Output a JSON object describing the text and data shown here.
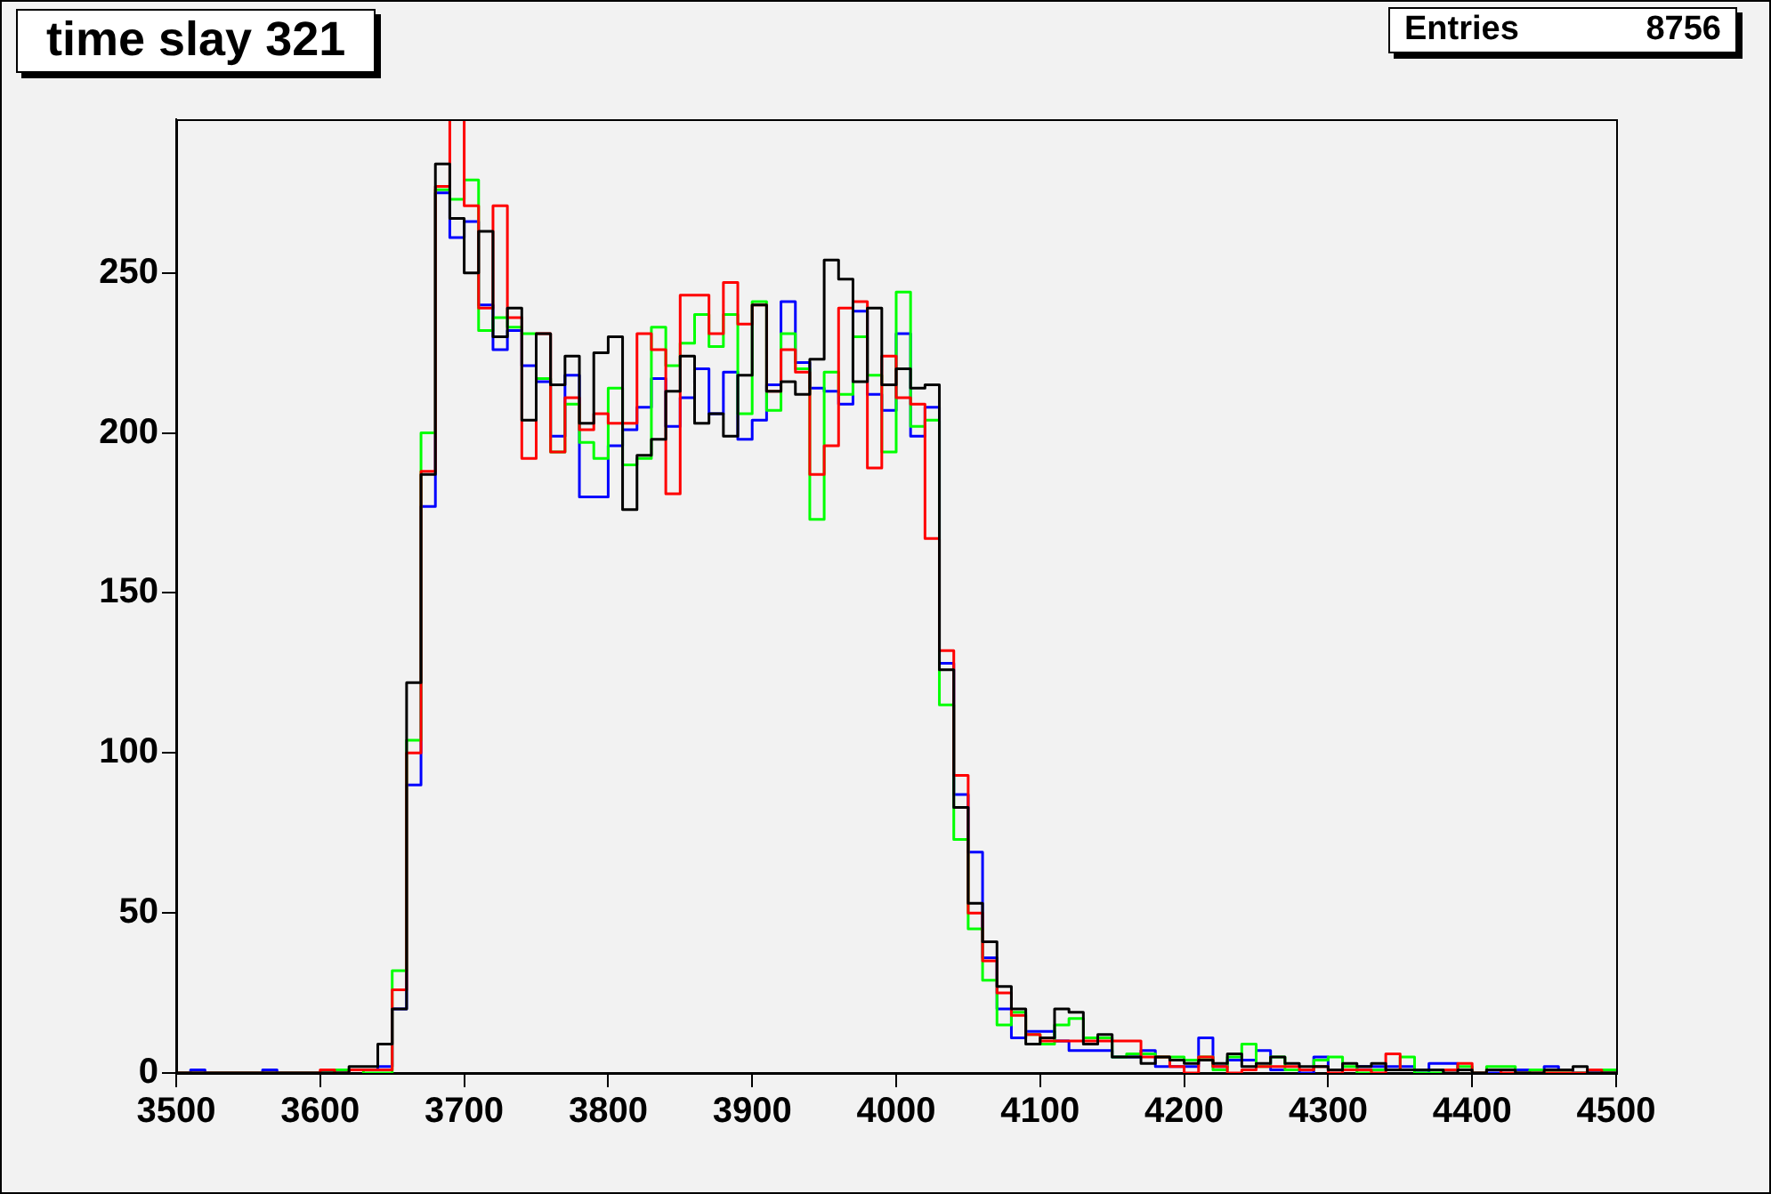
{
  "chart_data": {
    "type": "histogram",
    "title": "time slay 321",
    "annotations": [
      "Entries 8756"
    ],
    "bins": [
      3500,
      3510,
      3520,
      3530,
      3540,
      3550,
      3560,
      3570,
      3580,
      3590,
      3600,
      3610,
      3620,
      3630,
      3640,
      3650,
      3660,
      3670,
      3680,
      3690,
      3700,
      3710,
      3720,
      3730,
      3740,
      3750,
      3760,
      3770,
      3780,
      3790,
      3800,
      3810,
      3820,
      3830,
      3840,
      3850,
      3860,
      3870,
      3880,
      3890,
      3900,
      3910,
      3920,
      3930,
      3940,
      3950,
      3960,
      3970,
      3980,
      3990,
      4000,
      4010,
      4020,
      4030,
      4040,
      4050,
      4060,
      4070,
      4080,
      4090,
      4100,
      4110,
      4120,
      4130,
      4140,
      4150,
      4160,
      4170,
      4180,
      4190,
      4200,
      4210,
      4220,
      4230,
      4240,
      4250,
      4260,
      4270,
      4280,
      4290,
      4300,
      4310,
      4320,
      4330,
      4340,
      4350,
      4360,
      4370,
      4380,
      4390,
      4400,
      4410,
      4420,
      4430,
      4440,
      4450,
      4460,
      4470,
      4480,
      4490,
      4500
    ],
    "series": [
      {
        "color": "#000000",
        "values": [
          0,
          0,
          0,
          0,
          0,
          0,
          0,
          0,
          0,
          0,
          0,
          0,
          2,
          2,
          9,
          20,
          122,
          187,
          284,
          267,
          250,
          263,
          230,
          239,
          204,
          231,
          215,
          224,
          203,
          225,
          230,
          176,
          193,
          198,
          213,
          224,
          203,
          206,
          199,
          218,
          240,
          213,
          216,
          212,
          223,
          254,
          248,
          216,
          239,
          215,
          220,
          214,
          215,
          126,
          83,
          53,
          41,
          27,
          20,
          9,
          11,
          20,
          19,
          9,
          12,
          5,
          5,
          3,
          5,
          4,
          3,
          4,
          3,
          6,
          2,
          3,
          5,
          3,
          2,
          2,
          1,
          3,
          2,
          3,
          1,
          1,
          1,
          1,
          0,
          1,
          0,
          1,
          1,
          0,
          0,
          1,
          1,
          2,
          0,
          0
        ]
      },
      {
        "color": "#ff0000",
        "values": [
          0,
          0,
          0,
          0,
          0,
          0,
          0,
          0,
          0,
          0,
          1,
          0,
          1,
          1,
          1,
          26,
          100,
          188,
          277,
          298,
          271,
          239,
          271,
          236,
          192,
          231,
          194,
          211,
          201,
          206,
          203,
          203,
          231,
          226,
          181,
          243,
          243,
          231,
          247,
          234,
          240,
          213,
          226,
          219,
          187,
          196,
          239,
          241,
          189,
          224,
          211,
          209,
          167,
          132,
          93,
          50,
          35,
          25,
          18,
          12,
          10,
          10,
          10,
          10,
          10,
          10,
          10,
          5,
          5,
          2,
          0,
          5,
          2,
          0,
          1,
          2,
          2,
          2,
          1,
          2,
          0,
          1,
          1,
          0,
          6,
          1,
          1,
          1,
          1,
          3,
          0,
          1,
          0,
          0,
          0,
          0,
          0,
          0,
          1,
          0
        ]
      },
      {
        "color": "#00ff00",
        "values": [
          0,
          0,
          0,
          0,
          0,
          0,
          0,
          0,
          0,
          0,
          0,
          1,
          1,
          0,
          0,
          32,
          104,
          200,
          276,
          273,
          279,
          232,
          236,
          233,
          231,
          217,
          194,
          209,
          197,
          192,
          214,
          190,
          192,
          233,
          221,
          228,
          237,
          227,
          237,
          206,
          241,
          207,
          231,
          220,
          173,
          219,
          212,
          230,
          218,
          194,
          244,
          202,
          204,
          115,
          73,
          45,
          29,
          15,
          19,
          12,
          9,
          15,
          17,
          11,
          11,
          5,
          6,
          6,
          5,
          5,
          4,
          5,
          1,
          5,
          9,
          2,
          5,
          1,
          1,
          4,
          5,
          2,
          0,
          1,
          1,
          5,
          0,
          0,
          1,
          2,
          0,
          2,
          2,
          0,
          1,
          0,
          0,
          0,
          1,
          1
        ]
      },
      {
        "color": "#0000ff",
        "values": [
          0,
          1,
          0,
          0,
          0,
          0,
          1,
          0,
          0,
          0,
          0,
          0,
          1,
          1,
          2,
          20,
          90,
          177,
          275,
          261,
          266,
          240,
          226,
          232,
          221,
          216,
          199,
          218,
          180,
          180,
          196,
          201,
          208,
          217,
          202,
          211,
          220,
          206,
          219,
          198,
          204,
          215,
          241,
          222,
          214,
          213,
          209,
          238,
          212,
          207,
          231,
          199,
          208,
          128,
          87,
          69,
          36,
          20,
          11,
          13,
          13,
          10,
          7,
          7,
          7,
          5,
          5,
          7,
          2,
          2,
          2,
          11,
          2,
          4,
          4,
          7,
          1,
          1,
          0,
          5,
          1,
          1,
          2,
          2,
          2,
          2,
          0,
          3,
          3,
          1,
          0,
          0,
          1,
          1,
          1,
          2,
          1,
          0,
          0,
          0
        ]
      }
    ],
    "xlim": [
      3500,
      4500
    ],
    "xticks": [
      3500,
      3600,
      3700,
      3800,
      3900,
      4000,
      4100,
      4200,
      4300,
      4400,
      4500
    ],
    "ylim": [
      0,
      298
    ],
    "yticks": [
      0,
      50,
      100,
      150,
      200,
      250
    ],
    "legend": false,
    "grid": false
  }
}
